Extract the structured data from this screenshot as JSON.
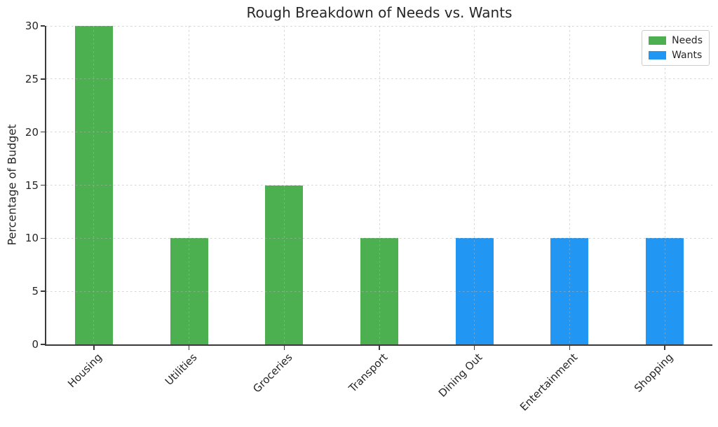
{
  "chart_data": {
    "type": "bar",
    "title": "Rough Breakdown of Needs vs. Wants",
    "ylabel": "Percentage of Budget",
    "xlabel": "",
    "categories": [
      "Housing",
      "Utilities",
      "Groceries",
      "Transport",
      "Dining Out",
      "Entertainment",
      "Shopping"
    ],
    "series": [
      {
        "name": "Needs",
        "color": "#4caf50",
        "values": [
          30,
          10,
          15,
          10,
          null,
          null,
          null
        ]
      },
      {
        "name": "Wants",
        "color": "#2196f3",
        "values": [
          null,
          null,
          null,
          null,
          10,
          10,
          10
        ]
      }
    ],
    "ylim": [
      0,
      30
    ],
    "yticks": [
      0,
      5,
      10,
      15,
      20,
      25,
      30
    ],
    "grid": true,
    "grid_style": "dashed",
    "legend": {
      "position": "upper right",
      "entries": [
        {
          "label": "Needs",
          "color": "#4caf50"
        },
        {
          "label": "Wants",
          "color": "#2196f3"
        }
      ]
    }
  }
}
